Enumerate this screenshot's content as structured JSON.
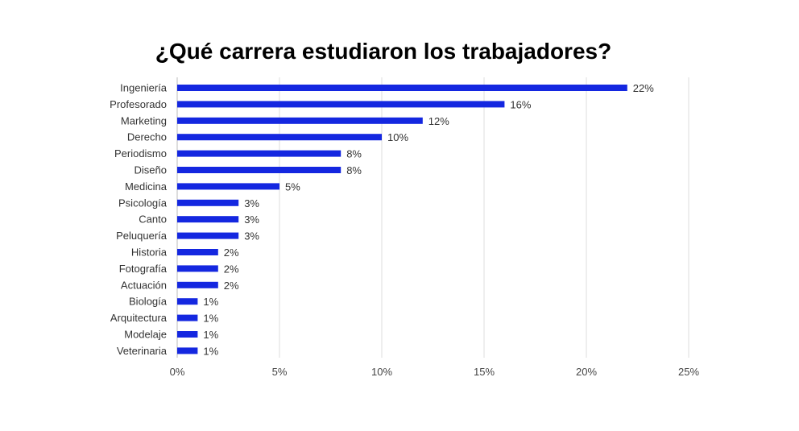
{
  "chart_data": {
    "type": "bar",
    "orientation": "horizontal",
    "title": "¿Qué carrera estudiaron los trabajadores?",
    "xlabel": "",
    "ylabel": "",
    "categories": [
      "Ingeniería",
      "Profesorado",
      "Marketing",
      "Derecho",
      "Periodismo",
      "Diseño",
      "Medicina",
      "Psicología",
      "Canto",
      "Peluquería",
      "Historia",
      "Fotografía",
      "Actuación",
      "Biología",
      "Arquitectura",
      "Modelaje",
      "Veterinaria"
    ],
    "values": [
      22,
      16,
      12,
      10,
      8,
      8,
      5,
      3,
      3,
      3,
      2,
      2,
      2,
      1,
      1,
      1,
      1
    ],
    "value_labels": [
      "22%",
      "16%",
      "12%",
      "10%",
      "8%",
      "8%",
      "5%",
      "3%",
      "3%",
      "3%",
      "2%",
      "2%",
      "2%",
      "1%",
      "1%",
      "1%",
      "1%"
    ],
    "xlim": [
      0,
      25
    ],
    "x_ticks": [
      0,
      5,
      10,
      15,
      20,
      25
    ],
    "x_tick_labels": [
      "0%",
      "5%",
      "10%",
      "15%",
      "20%",
      "25%"
    ],
    "grid": true,
    "bar_color": "#1427e0",
    "grid_color": "#dddddd"
  }
}
